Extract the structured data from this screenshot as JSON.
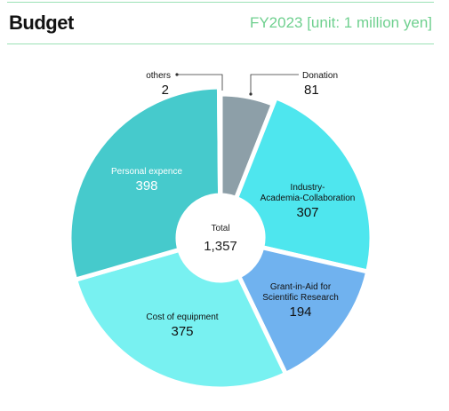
{
  "header": {
    "title": "Budget",
    "subtitle": "FY2023 [unit: 1 million yen]"
  },
  "chart_data": {
    "type": "pie",
    "style": "donut",
    "total_label": "Total",
    "total_value": "1,357",
    "slices": [
      {
        "name": "Donation",
        "value": 81,
        "color": "#8d9fa8",
        "label_lines": [
          "Donation"
        ],
        "value_text": "81"
      },
      {
        "name": "Industry-Academia-Collaboration",
        "value": 307,
        "color": "#4ee6ee",
        "label_lines": [
          "Industry-",
          "Academia-Collaboration"
        ],
        "value_text": "307"
      },
      {
        "name": "Grant-in-Aid for Scientific Research",
        "value": 194,
        "color": "#70b2ef",
        "label_lines": [
          "Grant-in-Aid for",
          "Scientific Research"
        ],
        "value_text": "194"
      },
      {
        "name": "Cost of equipment",
        "value": 375,
        "color": "#78f1f1",
        "label_lines": [
          "Cost of equipment"
        ],
        "value_text": "375"
      },
      {
        "name": "Personal expence",
        "value": 398,
        "color": "#46cacc",
        "label_lines": [
          "Personal expence"
        ],
        "value_text": "398"
      },
      {
        "name": "others",
        "value": 2,
        "color": "#5b7178",
        "label_lines": [
          "others"
        ],
        "value_text": "2"
      }
    ]
  }
}
